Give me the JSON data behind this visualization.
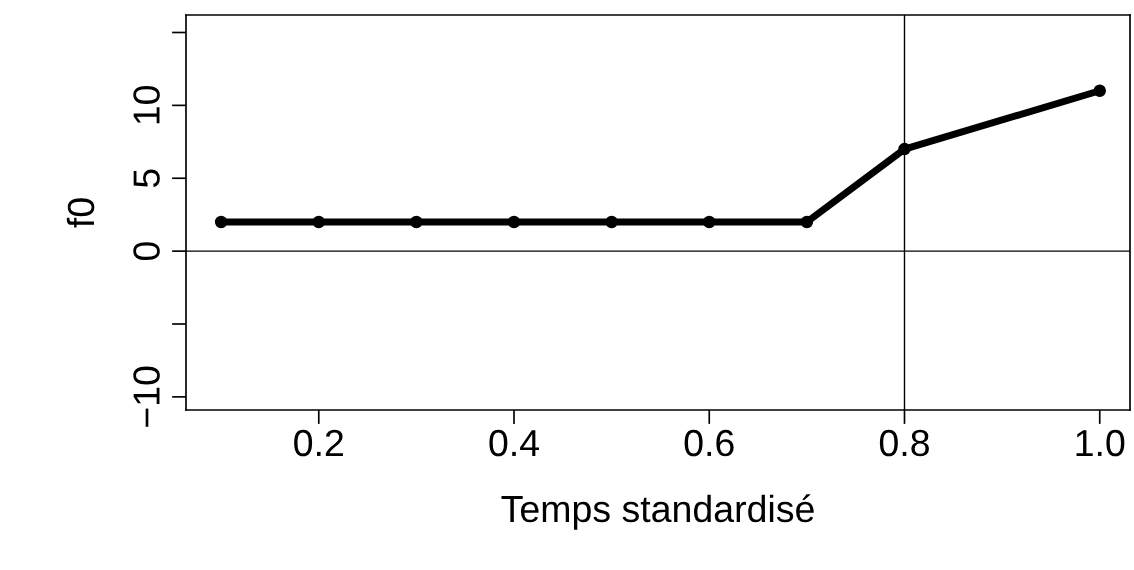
{
  "chart_data": {
    "type": "line",
    "xlabel": "Temps standardisé",
    "ylabel": "f0",
    "x": [
      0.1,
      0.2,
      0.3,
      0.4,
      0.5,
      0.6,
      0.7,
      0.8,
      1.0
    ],
    "series": [
      {
        "color": "#000000",
        "values": [
          2,
          2,
          2,
          2,
          2,
          2,
          2,
          7,
          11
        ]
      }
    ],
    "xlim": [
      0.064,
      1.031
    ],
    "ylim": [
      -10.9,
      16.2
    ],
    "xticks": [
      {
        "value": 0.2,
        "label": "0.2"
      },
      {
        "value": 0.4,
        "label": "0.4"
      },
      {
        "value": 0.6,
        "label": "0.6"
      },
      {
        "value": 0.8,
        "label": "0.8"
      },
      {
        "value": 1.0,
        "label": "1.0"
      }
    ],
    "yticks": [
      -10,
      {
        "value": -5,
        "label": null
      },
      0,
      5,
      10,
      {
        "value": 15,
        "label": null
      }
    ],
    "ref_lines": [
      {
        "axis": "y",
        "value": 0,
        "color": "#000000"
      },
      {
        "axis": "x",
        "value": 0.8,
        "color": "#000000"
      }
    ],
    "marker": "circle",
    "line_style": "solid",
    "grid": false,
    "legend": false
  }
}
